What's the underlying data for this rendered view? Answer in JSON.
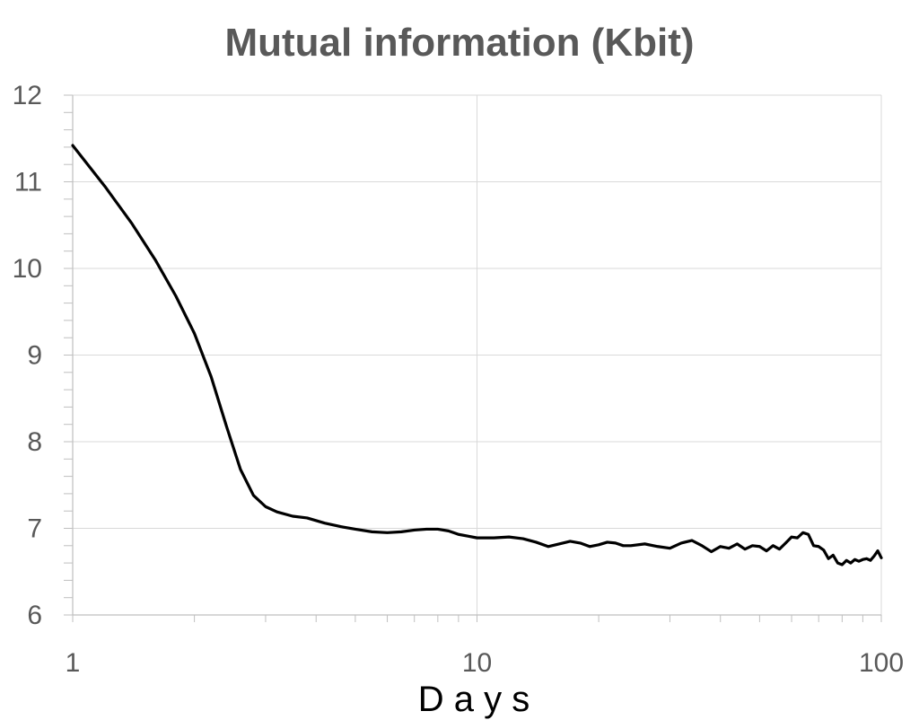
{
  "chart_data": {
    "type": "line",
    "title": "Mutual information (Kbit)",
    "xlabel": "D a y s",
    "ylabel": "",
    "xscale": "log",
    "xlim": [
      1,
      100
    ],
    "ylim": [
      6,
      12
    ],
    "xticks": [
      "1",
      "10",
      "100"
    ],
    "yticks": [
      "6",
      "7",
      "8",
      "9",
      "10",
      "11",
      "12"
    ],
    "grid": true,
    "legend": "none",
    "line_color": "#000000",
    "series": [
      {
        "x": [
          1,
          1.2,
          1.4,
          1.6,
          1.8,
          2.0,
          2.2,
          2.4,
          2.6,
          2.8,
          3.0,
          3.2,
          3.5,
          3.8,
          4.2,
          4.6,
          5.0,
          5.5,
          6.0,
          6.5,
          7.0,
          7.5,
          8.0,
          8.5,
          9.0,
          9.5,
          10,
          11,
          12,
          13,
          14,
          15,
          16,
          17,
          18,
          19,
          20,
          21,
          22,
          23,
          24,
          26,
          28,
          30,
          32,
          34,
          36,
          38,
          40,
          42,
          44,
          46,
          48,
          50,
          52,
          54,
          56,
          58,
          60,
          62,
          64,
          66,
          68,
          70,
          72,
          74,
          76,
          78,
          80,
          82,
          84,
          86,
          88,
          90,
          92,
          94,
          96,
          98,
          100
        ],
        "y": [
          11.42,
          10.95,
          10.52,
          10.1,
          9.68,
          9.25,
          8.75,
          8.18,
          7.68,
          7.38,
          7.25,
          7.19,
          7.14,
          7.12,
          7.06,
          7.02,
          6.99,
          6.96,
          6.95,
          6.96,
          6.98,
          6.99,
          6.99,
          6.97,
          6.93,
          6.91,
          6.89,
          6.89,
          6.9,
          6.88,
          6.84,
          6.79,
          6.82,
          6.85,
          6.83,
          6.79,
          6.81,
          6.84,
          6.83,
          6.8,
          6.8,
          6.82,
          6.79,
          6.77,
          6.83,
          6.86,
          6.8,
          6.73,
          6.79,
          6.77,
          6.82,
          6.76,
          6.8,
          6.79,
          6.74,
          6.8,
          6.76,
          6.83,
          6.9,
          6.89,
          6.95,
          6.93,
          6.8,
          6.79,
          6.75,
          6.65,
          6.69,
          6.6,
          6.58,
          6.63,
          6.6,
          6.64,
          6.62,
          6.64,
          6.65,
          6.63,
          6.68,
          6.74,
          6.66
        ]
      }
    ]
  }
}
